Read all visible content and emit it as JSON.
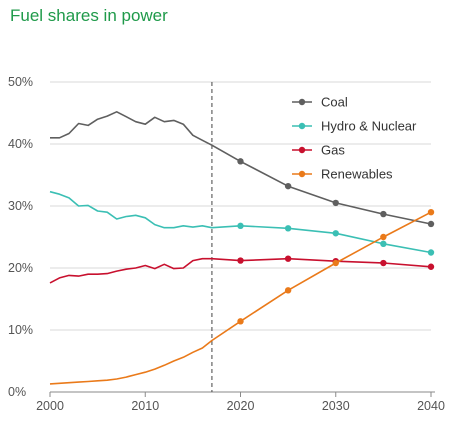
{
  "chart_data": {
    "type": "line",
    "title": "Fuel shares in power",
    "xlabel": "",
    "ylabel": "",
    "xlim": [
      2000,
      2040
    ],
    "ylim": [
      0,
      50
    ],
    "x_ticks": [
      "2000",
      "2010",
      "2020",
      "2030",
      "2040"
    ],
    "y_ticks": [
      "0%",
      "10%",
      "20%",
      "30%",
      "40%",
      "50%"
    ],
    "grid": true,
    "legend_position": "top-right",
    "reference_line_x": 2017,
    "series": [
      {
        "name": "Coal",
        "color": "#5f5f5f",
        "x": [
          2000,
          2001,
          2002,
          2003,
          2004,
          2005,
          2006,
          2007,
          2008,
          2009,
          2010,
          2011,
          2012,
          2013,
          2014,
          2015,
          2016,
          2017,
          2020,
          2025,
          2030,
          2035,
          2040
        ],
        "y": [
          41.0,
          41.0,
          41.7,
          43.3,
          43.0,
          44.0,
          44.5,
          45.2,
          44.4,
          43.6,
          43.2,
          44.3,
          43.6,
          43.8,
          43.2,
          41.4,
          40.6,
          39.8,
          37.2,
          33.2,
          30.5,
          28.7,
          27.1
        ],
        "markers_at": [
          2020,
          2025,
          2030,
          2035,
          2040
        ]
      },
      {
        "name": "Hydro & Nuclear",
        "color": "#3bbfb4",
        "x": [
          2000,
          2001,
          2002,
          2003,
          2004,
          2005,
          2006,
          2007,
          2008,
          2009,
          2010,
          2011,
          2012,
          2013,
          2014,
          2015,
          2016,
          2017,
          2020,
          2025,
          2030,
          2035,
          2040
        ],
        "y": [
          32.3,
          31.9,
          31.3,
          30.0,
          30.1,
          29.2,
          29.0,
          27.9,
          28.3,
          28.5,
          28.1,
          27.0,
          26.5,
          26.5,
          26.8,
          26.6,
          26.8,
          26.5,
          26.8,
          26.4,
          25.6,
          23.9,
          22.5
        ],
        "markers_at": [
          2020,
          2025,
          2030,
          2035,
          2040
        ]
      },
      {
        "name": "Gas",
        "color": "#c8102e",
        "x": [
          2000,
          2001,
          2002,
          2003,
          2004,
          2005,
          2006,
          2007,
          2008,
          2009,
          2010,
          2011,
          2012,
          2013,
          2014,
          2015,
          2016,
          2017,
          2020,
          2025,
          2030,
          2035,
          2040
        ],
        "y": [
          17.6,
          18.4,
          18.8,
          18.7,
          19.0,
          19.0,
          19.1,
          19.5,
          19.8,
          20.0,
          20.4,
          19.9,
          20.6,
          19.9,
          20.0,
          21.2,
          21.5,
          21.5,
          21.2,
          21.5,
          21.1,
          20.8,
          20.2
        ],
        "markers_at": [
          2020,
          2025,
          2030,
          2035,
          2040
        ]
      },
      {
        "name": "Renewables",
        "color": "#ea7a1a",
        "x": [
          2000,
          2001,
          2002,
          2003,
          2004,
          2005,
          2006,
          2007,
          2008,
          2009,
          2010,
          2011,
          2012,
          2013,
          2014,
          2015,
          2016,
          2017,
          2020,
          2025,
          2030,
          2035,
          2040
        ],
        "y": [
          1.3,
          1.4,
          1.5,
          1.6,
          1.7,
          1.8,
          1.9,
          2.1,
          2.4,
          2.8,
          3.2,
          3.7,
          4.3,
          5.0,
          5.6,
          6.4,
          7.1,
          8.3,
          11.4,
          16.4,
          20.8,
          25.0,
          29.0
        ],
        "markers_at": [
          2020,
          2025,
          2030,
          2035,
          2040
        ]
      }
    ]
  }
}
